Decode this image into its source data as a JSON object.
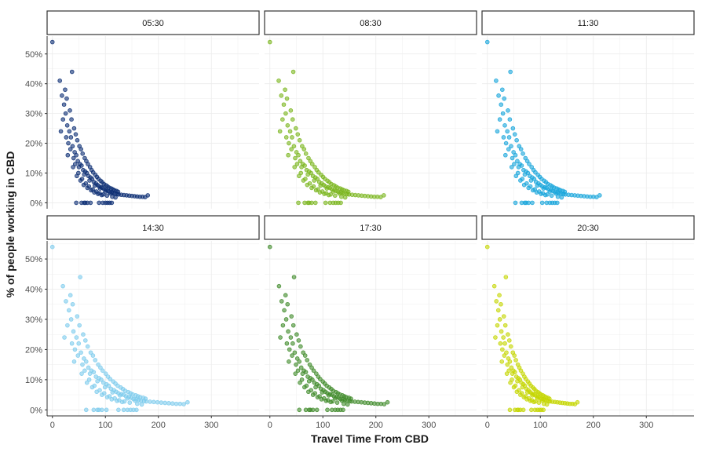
{
  "chart_data": {
    "type": "scatter",
    "xlabel": "Travel Time From CBD",
    "ylabel": "% of people working in CBD",
    "xlim": [
      -10,
      390
    ],
    "ylim": [
      -2,
      56
    ],
    "x_ticks": [
      0,
      100,
      200,
      300
    ],
    "x_tick_labels": [
      "0",
      "100",
      "200",
      "300"
    ],
    "y_ticks": [
      0,
      10,
      20,
      30,
      40,
      50
    ],
    "y_tick_labels": [
      "0%",
      "10%",
      "20%",
      "30%",
      "40%",
      "50%"
    ],
    "grid": true,
    "series": [
      {
        "name": "05:30",
        "color": "#0b2d73",
        "x_max": 180
      },
      {
        "name": "08:30",
        "color": "#7ab51d",
        "x_max": 215
      },
      {
        "name": "11:30",
        "color": "#17a5db",
        "x_max": 212
      },
      {
        "name": "14:30",
        "color": "#7dcbec",
        "x_max": 255
      },
      {
        "name": "17:30",
        "color": "#3f8b2a",
        "x_max": 222
      },
      {
        "name": "20:30",
        "color": "#c4d600",
        "x_max": 170
      }
    ],
    "points": [
      [
        0,
        54
      ],
      [
        14,
        41
      ],
      [
        37,
        44
      ],
      [
        18,
        36
      ],
      [
        22,
        33
      ],
      [
        25,
        30
      ],
      [
        20,
        28
      ],
      [
        28,
        26
      ],
      [
        32,
        24
      ],
      [
        35,
        22
      ],
      [
        30,
        20
      ],
      [
        38,
        19
      ],
      [
        42,
        17
      ],
      [
        45,
        16
      ],
      [
        40,
        15
      ],
      [
        48,
        14
      ],
      [
        52,
        13
      ],
      [
        55,
        12.5
      ],
      [
        50,
        12
      ],
      [
        58,
        11
      ],
      [
        62,
        10.5
      ],
      [
        65,
        10
      ],
      [
        60,
        9.5
      ],
      [
        68,
        9
      ],
      [
        72,
        8.5
      ],
      [
        75,
        8
      ],
      [
        70,
        7.5
      ],
      [
        78,
        7
      ],
      [
        82,
        6.5
      ],
      [
        85,
        6
      ],
      [
        80,
        5.8
      ],
      [
        88,
        5.5
      ],
      [
        92,
        5.2
      ],
      [
        95,
        5
      ],
      [
        90,
        4.8
      ],
      [
        98,
        4.5
      ],
      [
        102,
        4.3
      ],
      [
        105,
        4
      ],
      [
        100,
        3.8
      ],
      [
        108,
        3.6
      ],
      [
        112,
        3.5
      ],
      [
        115,
        3.3
      ],
      [
        110,
        3.1
      ],
      [
        118,
        3
      ],
      [
        122,
        2.9
      ],
      [
        125,
        2.8
      ],
      [
        130,
        2.7
      ],
      [
        135,
        2.6
      ],
      [
        140,
        2.5
      ],
      [
        145,
        2.4
      ],
      [
        150,
        2.3
      ],
      [
        155,
        2.2
      ],
      [
        160,
        2.1
      ],
      [
        165,
        2
      ],
      [
        170,
        2
      ],
      [
        175,
        1.9
      ],
      [
        180,
        2.5
      ],
      [
        24,
        38
      ],
      [
        27,
        35
      ],
      [
        33,
        31
      ],
      [
        36,
        28
      ],
      [
        41,
        25
      ],
      [
        44,
        23
      ],
      [
        47,
        21
      ],
      [
        51,
        19
      ],
      [
        54,
        18
      ],
      [
        57,
        16.5
      ],
      [
        61,
        15
      ],
      [
        64,
        14
      ],
      [
        67,
        13
      ],
      [
        71,
        12
      ],
      [
        74,
        11
      ],
      [
        77,
        10.2
      ],
      [
        81,
        9.4
      ],
      [
        84,
        8.7
      ],
      [
        87,
        8
      ],
      [
        91,
        7.4
      ],
      [
        94,
        6.9
      ],
      [
        97,
        6.3
      ],
      [
        101,
        5.9
      ],
      [
        104,
        5.5
      ],
      [
        107,
        5.1
      ],
      [
        111,
        4.8
      ],
      [
        114,
        4.5
      ],
      [
        117,
        4.2
      ],
      [
        121,
        4
      ],
      [
        124,
        3.7
      ],
      [
        16,
        24
      ],
      [
        26,
        22
      ],
      [
        34,
        18
      ],
      [
        43,
        13
      ],
      [
        49,
        10
      ],
      [
        56,
        8
      ],
      [
        63,
        6.5
      ],
      [
        69,
        5.5
      ],
      [
        76,
        4.5
      ],
      [
        83,
        3.8
      ],
      [
        89,
        3.2
      ],
      [
        96,
        2.8
      ],
      [
        103,
        2.4
      ],
      [
        113,
        2
      ],
      [
        119,
        1.8
      ],
      [
        29,
        16
      ],
      [
        39,
        12
      ],
      [
        46,
        9
      ],
      [
        53,
        7.5
      ],
      [
        59,
        6
      ],
      [
        66,
        5
      ],
      [
        73,
        4.2
      ],
      [
        79,
        3.5
      ],
      [
        86,
        3
      ],
      [
        93,
        2.6
      ],
      [
        45,
        0
      ],
      [
        55,
        0
      ],
      [
        60,
        0
      ],
      [
        62,
        0
      ],
      [
        66,
        0
      ],
      [
        72,
        0
      ],
      [
        88,
        0
      ],
      [
        95,
        0
      ],
      [
        100,
        0
      ],
      [
        104,
        0
      ],
      [
        108,
        0
      ],
      [
        112,
        0
      ]
    ]
  }
}
